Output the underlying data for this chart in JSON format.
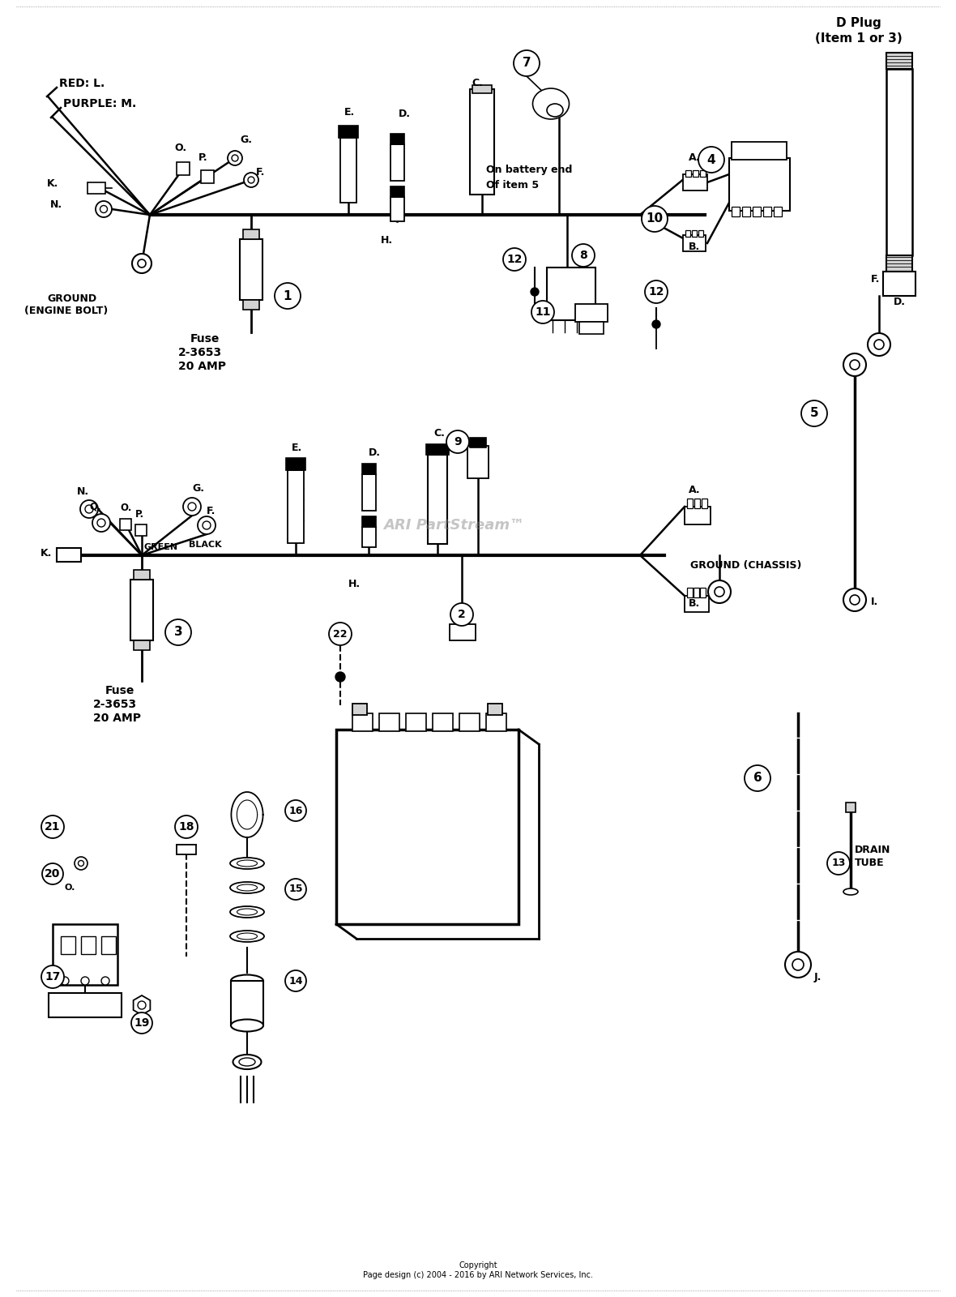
{
  "bg_color": "#ffffff",
  "watermark": "ARI PartStream™",
  "copyright": "Copyright\nPage design (c) 2004 - 2016 by ARI Network Services, Inc.",
  "d_plug_label": "D Plug\n(Item 1 or 3)",
  "ground_chassis_label": "GROUND (CHASSIS)",
  "drain_tube_label": "DRAIN\nTUBE"
}
